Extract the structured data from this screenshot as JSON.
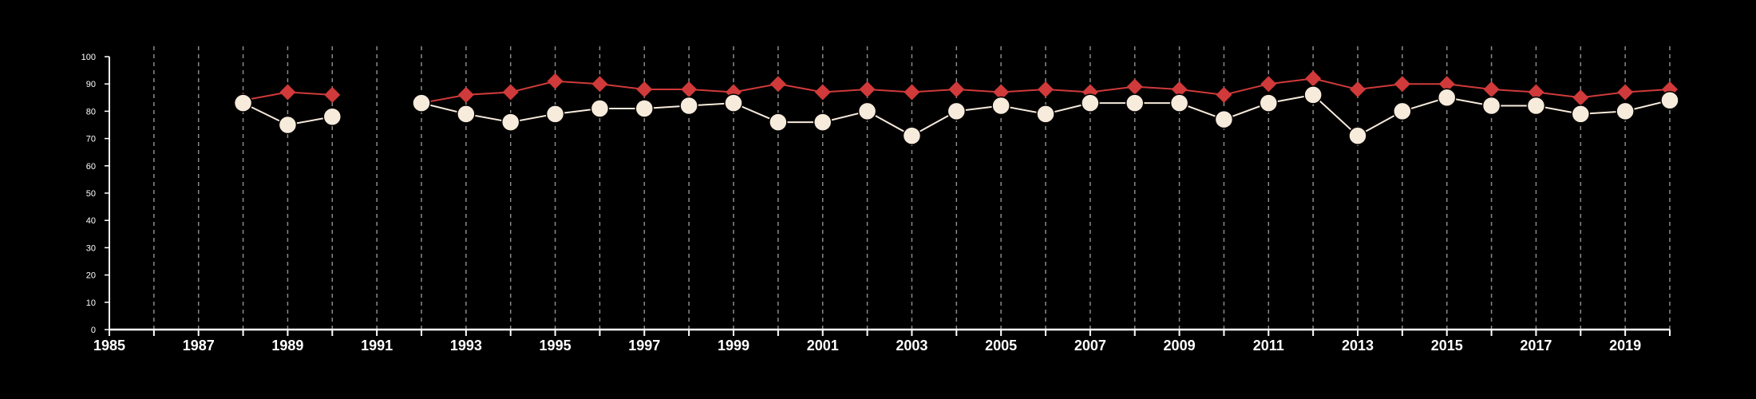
{
  "chart_data": {
    "type": "line",
    "x_ticks": [
      1985,
      1987,
      1989,
      1991,
      1993,
      1995,
      1997,
      1999,
      2001,
      2003,
      2005,
      2007,
      2009,
      2011,
      2013,
      2015,
      2017,
      2019
    ],
    "y_ticks": [
      0,
      10,
      20,
      30,
      40,
      50,
      60,
      70,
      80,
      90,
      100
    ],
    "xlim": [
      1985,
      2020
    ],
    "ylim": [
      0,
      100
    ],
    "grid": "vertical dashed lines at each year",
    "legend": "none",
    "series": [
      {
        "color": "#d03a3a",
        "marker": "diamond",
        "points": [
          [
            1988,
            84
          ],
          [
            1989,
            87
          ],
          [
            1990,
            86
          ],
          [
            1992,
            83
          ],
          [
            1993,
            86
          ],
          [
            1994,
            87
          ],
          [
            1995,
            91
          ],
          [
            1996,
            90
          ],
          [
            1997,
            88
          ],
          [
            1998,
            88
          ],
          [
            1999,
            87
          ],
          [
            2000,
            90
          ],
          [
            2001,
            87
          ],
          [
            2002,
            88
          ],
          [
            2003,
            87
          ],
          [
            2004,
            88
          ],
          [
            2005,
            87
          ],
          [
            2006,
            88
          ],
          [
            2007,
            87
          ],
          [
            2008,
            89
          ],
          [
            2009,
            88
          ],
          [
            2010,
            86
          ],
          [
            2011,
            90
          ],
          [
            2012,
            92
          ],
          [
            2013,
            88
          ],
          [
            2014,
            90
          ],
          [
            2015,
            90
          ],
          [
            2016,
            88
          ],
          [
            2017,
            87
          ],
          [
            2018,
            85
          ],
          [
            2019,
            87
          ],
          [
            2020,
            88
          ]
        ]
      },
      {
        "color": "#f7ebdc",
        "marker": "circle",
        "points": [
          [
            1988,
            83
          ],
          [
            1989,
            75
          ],
          [
            1990,
            78
          ],
          [
            1992,
            83
          ],
          [
            1993,
            79
          ],
          [
            1994,
            76
          ],
          [
            1995,
            79
          ],
          [
            1996,
            81
          ],
          [
            1997,
            81
          ],
          [
            1998,
            82
          ],
          [
            1999,
            83
          ],
          [
            2000,
            76
          ],
          [
            2001,
            76
          ],
          [
            2002,
            80
          ],
          [
            2003,
            71
          ],
          [
            2004,
            80
          ],
          [
            2005,
            82
          ],
          [
            2006,
            79
          ],
          [
            2007,
            83
          ],
          [
            2008,
            83
          ],
          [
            2009,
            83
          ],
          [
            2010,
            77
          ],
          [
            2011,
            83
          ],
          [
            2012,
            86
          ],
          [
            2013,
            71
          ],
          [
            2014,
            80
          ],
          [
            2015,
            85
          ],
          [
            2016,
            82
          ],
          [
            2017,
            82
          ],
          [
            2018,
            79
          ],
          [
            2019,
            80
          ],
          [
            2020,
            84
          ]
        ]
      }
    ]
  }
}
